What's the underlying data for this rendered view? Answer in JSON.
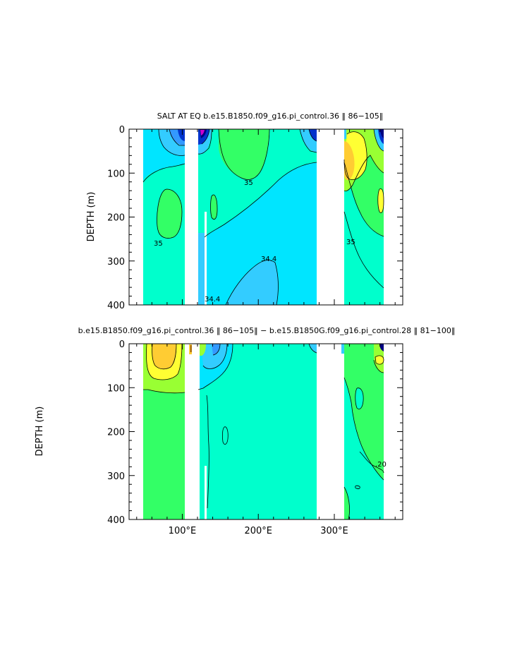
{
  "chart_data": [
    {
      "type": "heatmap",
      "title": "SALT AT EQ  b.e15.B1850.f09_g16.pi_control.36  ‖ 86−105‖",
      "xlabel": "",
      "ylabel": "DEPTH (m)",
      "xlim": [
        30,
        390
      ],
      "ylim": [
        400,
        0
      ],
      "yticks": [
        "0",
        "100",
        "200",
        "300",
        "400"
      ],
      "xticks": [
        "",
        "",
        ""
      ],
      "contour_labels": [
        "35",
        "35",
        "34.4",
        "34.4",
        "35"
      ],
      "colors": {
        "base": "#00ffcc",
        "light_blue": "#00e5ff",
        "blue": "#33ccff",
        "mid_blue": "#3399ff",
        "dark_blue": "#0033cc",
        "green": "#33ff66",
        "lime": "#99ff33",
        "yellow": "#ffff33",
        "orange": "#ffcc33",
        "navy": "#000080",
        "magenta": "#cc00cc"
      }
    },
    {
      "type": "heatmap",
      "title": "b.e15.B1850.f09_g16.pi_control.36  ‖ 86−105‖  −  b.e15.B1850G.f09_g16.pi_control.28  ‖ 81−100‖",
      "xlabel": "",
      "ylabel": "DEPTH (m)",
      "xlim": [
        30,
        390
      ],
      "ylim": [
        400,
        0
      ],
      "yticks": [
        "0",
        "100",
        "200",
        "300",
        "400"
      ],
      "xticks": [
        "100°E",
        "200°E",
        "300°E"
      ],
      "contour_labels": [
        "0",
        ".20"
      ],
      "colors": {
        "base": "#00ffcc",
        "light_blue": "#00e5ff",
        "blue": "#33ccff",
        "dark_blue": "#0033cc",
        "green": "#33ff66",
        "lime": "#99ff33",
        "yellow": "#ffff33",
        "orange": "#ffcc33",
        "navy": "#000080"
      }
    }
  ]
}
